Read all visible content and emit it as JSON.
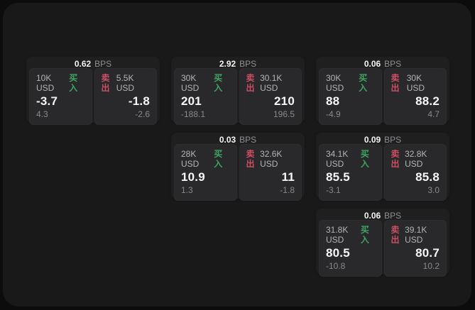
{
  "page": {
    "outer_bg": "#0c0c0d",
    "panel_bg": "#19191a",
    "card_bg": "#1f1f20",
    "tile_bg": "#29292b"
  },
  "labels": {
    "buy": "买入",
    "sell": "卖出",
    "bps": "BPS"
  },
  "colors": {
    "buy_green": "#3fa463",
    "sell_red": "#cf4e63",
    "value_white": "#f7f7f7",
    "muted_gray": "#89898c",
    "label_gray": "#b4b4b6"
  },
  "cards": [
    {
      "row": 1,
      "col": 1,
      "bps": "0.62",
      "buy": {
        "volume": "10K USD",
        "price": "-3.7",
        "delta": "4.3"
      },
      "sell": {
        "volume": "5.5K USD",
        "price": "-1.8",
        "delta": "-2.6"
      }
    },
    {
      "row": 1,
      "col": 2,
      "bps": "2.92",
      "buy": {
        "volume": "30K USD",
        "price": "201",
        "delta": "-188.1"
      },
      "sell": {
        "volume": "30.1K USD",
        "price": "210",
        "delta": "196.5"
      }
    },
    {
      "row": 1,
      "col": 3,
      "bps": "0.06",
      "buy": {
        "volume": "30K USD",
        "price": "88",
        "delta": "-4.9"
      },
      "sell": {
        "volume": "30K USD",
        "price": "88.2",
        "delta": "4.7"
      }
    },
    {
      "row": 2,
      "col": 2,
      "bps": "0.03",
      "buy": {
        "volume": "28K USD",
        "price": "10.9",
        "delta": "1.3"
      },
      "sell": {
        "volume": "32.6K USD",
        "price": "11",
        "delta": "-1.8"
      }
    },
    {
      "row": 2,
      "col": 3,
      "bps": "0.09",
      "buy": {
        "volume": "34.1K USD",
        "price": "85.5",
        "delta": "-3.1"
      },
      "sell": {
        "volume": "32.8K USD",
        "price": "85.8",
        "delta": "3.0"
      }
    },
    {
      "row": 3,
      "col": 3,
      "bps": "0.06",
      "buy": {
        "volume": "31.8K USD",
        "price": "80.5",
        "delta": "-10.8"
      },
      "sell": {
        "volume": "39.1K USD",
        "price": "80.7",
        "delta": "10.2"
      }
    }
  ]
}
